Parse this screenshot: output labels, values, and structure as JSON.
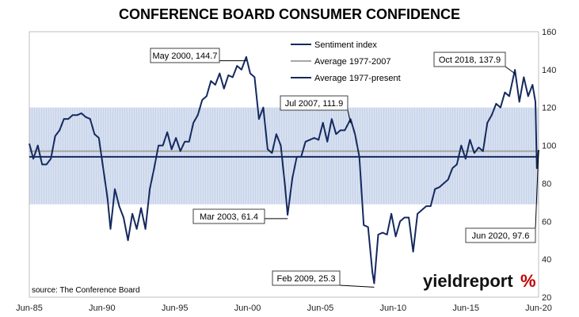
{
  "chart_data": {
    "type": "line",
    "title": "CONFERENCE BOARD CONSUMER CONFIDENCE",
    "xlabel": "",
    "ylabel": "",
    "x_tick_labels": [
      "Jun-85",
      "Jun-90",
      "Jun-95",
      "Jun-00",
      "Jun-05",
      "Jun-10",
      "Jun-15",
      "Jun-20"
    ],
    "xlim": [
      1985.42,
      2020.42
    ],
    "ylim": [
      20,
      160
    ],
    "y_ticks": [
      20,
      40,
      60,
      80,
      100,
      120,
      140,
      160
    ],
    "grid": false,
    "legend_position": "top-center",
    "band": {
      "low": 69,
      "high": 120
    },
    "colors": {
      "sentiment": "#14295e",
      "avg_1977_2007": "#a6a6a6",
      "avg_1977_present": "#14295e",
      "band": "#c6d3ea"
    },
    "series": [
      {
        "name": "Sentiment index",
        "x": [
          1985.42,
          1985.7,
          1986.0,
          1986.3,
          1986.6,
          1986.9,
          1987.2,
          1987.5,
          1987.8,
          1988.1,
          1988.4,
          1988.7,
          1989.0,
          1989.3,
          1989.6,
          1989.9,
          1990.2,
          1990.5,
          1990.8,
          1991.0,
          1991.3,
          1991.6,
          1991.9,
          1992.2,
          1992.5,
          1992.8,
          1993.1,
          1993.4,
          1993.7,
          1994.0,
          1994.3,
          1994.6,
          1994.9,
          1995.2,
          1995.5,
          1995.8,
          1996.1,
          1996.4,
          1996.7,
          1997.0,
          1997.3,
          1997.6,
          1997.9,
          1998.2,
          1998.5,
          1998.8,
          1999.1,
          1999.4,
          1999.7,
          2000.0,
          2000.33,
          2000.6,
          2000.9,
          2001.2,
          2001.5,
          2001.8,
          2002.1,
          2002.4,
          2002.7,
          2003.0,
          2003.17,
          2003.5,
          2003.8,
          2004.1,
          2004.4,
          2004.7,
          2005.0,
          2005.3,
          2005.6,
          2005.9,
          2006.2,
          2006.5,
          2006.8,
          2007.1,
          2007.5,
          2007.8,
          2008.1,
          2008.4,
          2008.7,
          2009.0,
          2009.12,
          2009.4,
          2009.7,
          2010.0,
          2010.3,
          2010.6,
          2010.9,
          2011.2,
          2011.5,
          2011.8,
          2012.1,
          2012.4,
          2012.7,
          2013.0,
          2013.3,
          2013.6,
          2013.9,
          2014.2,
          2014.5,
          2014.8,
          2015.1,
          2015.4,
          2015.7,
          2016.0,
          2016.3,
          2016.6,
          2016.9,
          2017.2,
          2017.5,
          2017.8,
          2018.1,
          2018.4,
          2018.79,
          2019.1,
          2019.4,
          2019.7,
          2020.0,
          2020.2,
          2020.3,
          2020.42
        ],
        "y": [
          101,
          95,
          98,
          92,
          88,
          95,
          103,
          110,
          112,
          116,
          114,
          118,
          115,
          117,
          112,
          108,
          102,
          90,
          70,
          58,
          75,
          70,
          60,
          52,
          62,
          58,
          65,
          58,
          75,
          90,
          98,
          102,
          105,
          100,
          102,
          99,
          100,
          104,
          110,
          118,
          122,
          128,
          132,
          134,
          136,
          132,
          135,
          138,
          140,
          142,
          144.7,
          140,
          134,
          116,
          118,
          100,
          94,
          108,
          98,
          80,
          61.4,
          85,
          92,
          96,
          100,
          105,
          102,
          105,
          110,
          104,
          112,
          108,
          106,
          110,
          111.9,
          108,
          92,
          60,
          55,
          35,
          25.3,
          55,
          52,
          55,
          62,
          54,
          58,
          64,
          60,
          46,
          62,
          68,
          66,
          70,
          75,
          80,
          78,
          84,
          86,
          92,
          98,
          95,
          101,
          98,
          97,
          99,
          110,
          118,
          120,
          122,
          126,
          128,
          137.9,
          125,
          134,
          128,
          130,
          125,
          86,
          97.6
        ]
      },
      {
        "name": "Average 1977-2007",
        "value": 97
      },
      {
        "name": "Average 1977-present",
        "value": 94
      }
    ],
    "annotations": [
      {
        "label": "May 2000, 144.7",
        "x": 2000.33,
        "y": 144.7
      },
      {
        "label": "Jul 2007, 111.9",
        "x": 2007.5,
        "y": 111.9
      },
      {
        "label": "Oct 2018, 137.9",
        "x": 2018.79,
        "y": 137.9
      },
      {
        "label": "Mar 2003, 61.4",
        "x": 2003.17,
        "y": 61.4
      },
      {
        "label": "Feb 2009, 25.3",
        "x": 2009.12,
        "y": 25.3
      },
      {
        "label": "Jun 2020, 97.6",
        "x": 2020.42,
        "y": 97.6
      }
    ],
    "source": "source: The Conference Board"
  },
  "logo": {
    "text": "yieldreport",
    "symbol": "%"
  }
}
